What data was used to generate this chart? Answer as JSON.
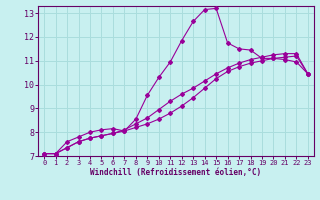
{
  "bg_color": "#c8f0f0",
  "line_color": "#990099",
  "grid_color": "#aadddd",
  "axis_color": "#660066",
  "xlabel": "Windchill (Refroidissement éolien,°C)",
  "xlim": [
    -0.5,
    23.5
  ],
  "ylim": [
    7,
    13.3
  ],
  "xticks": [
    0,
    1,
    2,
    3,
    4,
    5,
    6,
    7,
    8,
    9,
    10,
    11,
    12,
    13,
    14,
    15,
    16,
    17,
    18,
    19,
    20,
    21,
    22,
    23
  ],
  "yticks": [
    7,
    8,
    9,
    10,
    11,
    12,
    13
  ],
  "curve1_x": [
    0,
    1,
    2,
    3,
    4,
    5,
    6,
    7,
    8,
    9,
    10,
    11,
    12,
    13,
    14,
    15,
    16,
    17,
    18,
    19,
    20,
    21,
    22,
    23
  ],
  "curve1_y": [
    7.1,
    7.1,
    7.6,
    7.8,
    8.0,
    8.1,
    8.15,
    8.05,
    8.55,
    9.55,
    10.3,
    10.95,
    11.85,
    12.65,
    13.15,
    13.2,
    11.75,
    11.5,
    11.45,
    11.1,
    11.1,
    11.05,
    10.95,
    10.45
  ],
  "curve2_x": [
    0,
    1,
    2,
    3,
    4,
    5,
    6,
    7,
    8,
    9,
    10,
    11,
    12,
    13,
    14,
    15,
    16,
    17,
    18,
    19,
    20,
    21,
    22,
    23
  ],
  "curve2_y": [
    7.1,
    7.1,
    7.35,
    7.6,
    7.75,
    7.85,
    7.95,
    8.05,
    8.2,
    8.35,
    8.55,
    8.8,
    9.1,
    9.45,
    9.85,
    10.25,
    10.55,
    10.75,
    10.9,
    11.0,
    11.1,
    11.15,
    11.2,
    10.45
  ],
  "curve3_x": [
    0,
    1,
    2,
    3,
    4,
    5,
    6,
    7,
    8,
    9,
    10,
    11,
    12,
    13,
    14,
    15,
    16,
    17,
    18,
    19,
    20,
    21,
    22,
    23
  ],
  "curve3_y": [
    7.1,
    7.1,
    7.35,
    7.6,
    7.75,
    7.85,
    7.95,
    8.1,
    8.35,
    8.6,
    8.95,
    9.3,
    9.6,
    9.85,
    10.15,
    10.45,
    10.7,
    10.9,
    11.05,
    11.15,
    11.25,
    11.3,
    11.3,
    10.45
  ]
}
